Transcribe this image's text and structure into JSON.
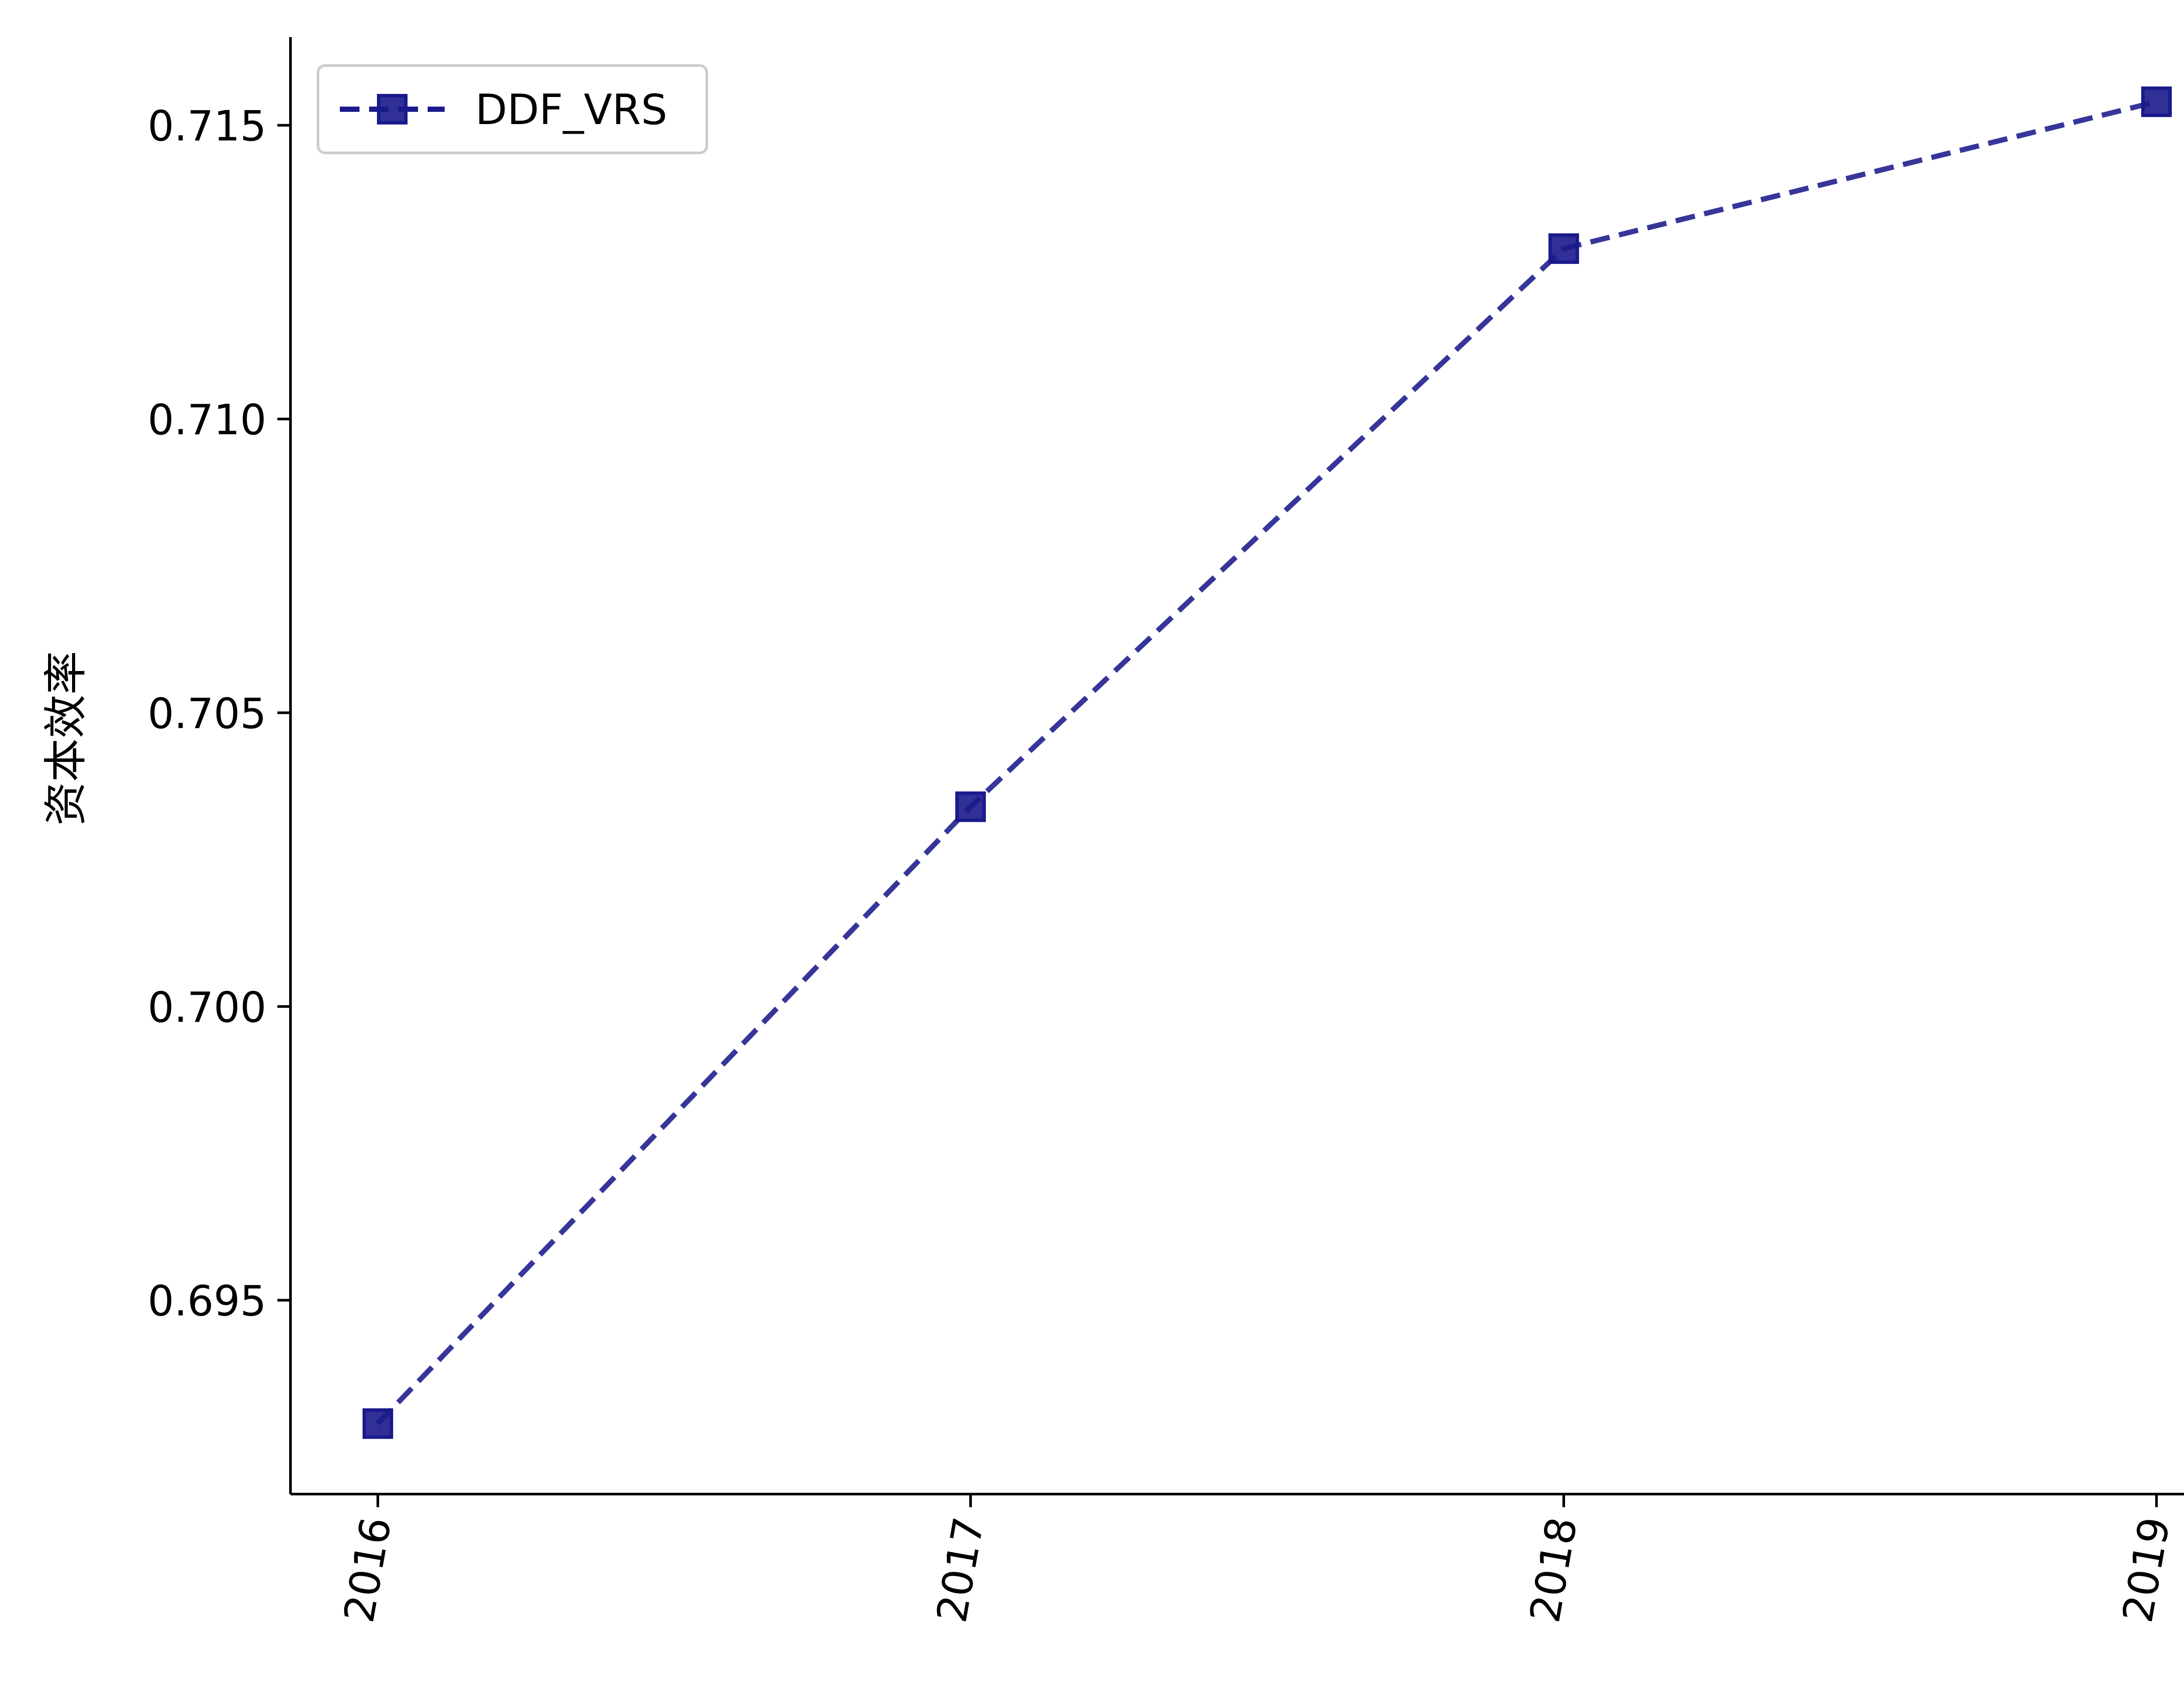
{
  "chart_data": {
    "type": "line",
    "title": "",
    "xlabel": "",
    "ylabel": "资本效率",
    "categories": [
      "2016",
      "2017",
      "2018",
      "2019"
    ],
    "series": [
      {
        "name": "DDF_VRS",
        "values": [
          0.6929,
          0.7034,
          0.7129,
          0.7154
        ],
        "color": "#1a1a8c",
        "line_style": "dashed",
        "marker": "square"
      }
    ],
    "yticks": [
      0.695,
      0.7,
      0.705,
      0.71,
      0.715
    ],
    "ytick_labels": [
      "0.695",
      "0.700",
      "0.705",
      "0.710",
      "0.715"
    ],
    "ylim": [
      0.6917,
      0.7165
    ],
    "xtick_rotation": -80,
    "legend_position": "top-left",
    "grid": false,
    "spines": "left-bottom"
  }
}
